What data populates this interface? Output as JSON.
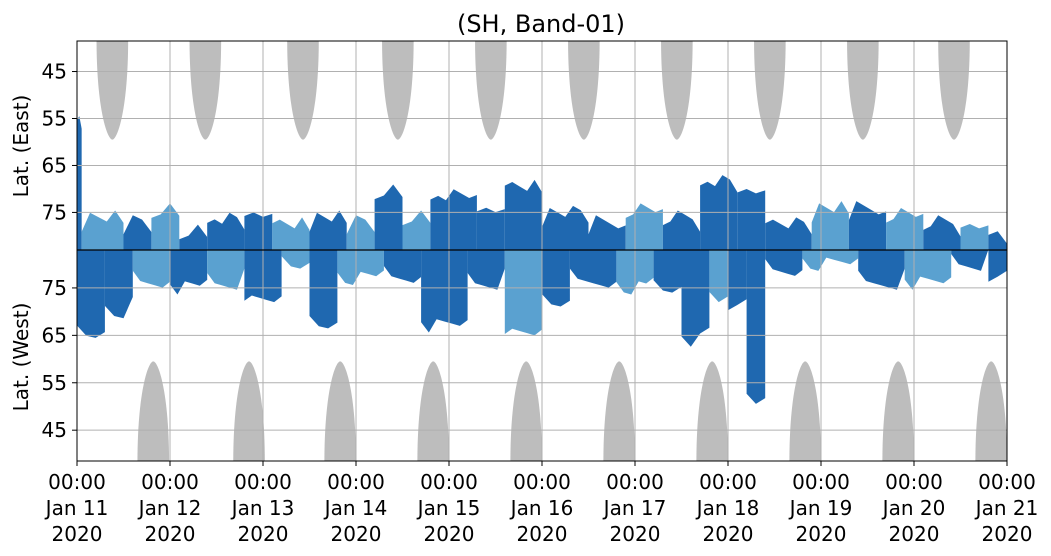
{
  "chart_data": {
    "type": "heatmap",
    "title": "(SH, Band-01)",
    "ylabel_east": "Lat. (East)",
    "ylabel_west": "Lat. (West)",
    "y_ticks_east": [
      "45",
      "55",
      "65",
      "75"
    ],
    "y_ticks_west": [
      "75",
      "65",
      "55",
      "45"
    ],
    "y_tick_values_east": [
      45,
      55,
      65,
      75
    ],
    "y_tick_values_west": [
      75,
      65,
      55,
      45
    ],
    "y_range_east": [
      38.5,
      83
    ],
    "y_range_west": [
      83,
      38.5
    ],
    "x_ticks": [
      {
        "time": "00:00",
        "date": "Jan 11",
        "year": "2020"
      },
      {
        "time": "00:00",
        "date": "Jan 12",
        "year": "2020"
      },
      {
        "time": "00:00",
        "date": "Jan 13",
        "year": "2020"
      },
      {
        "time": "00:00",
        "date": "Jan 14",
        "year": "2020"
      },
      {
        "time": "00:00",
        "date": "Jan 15",
        "year": "2020"
      },
      {
        "time": "00:00",
        "date": "Jan 16",
        "year": "2020"
      },
      {
        "time": "00:00",
        "date": "Jan 17",
        "year": "2020"
      },
      {
        "time": "00:00",
        "date": "Jan 18",
        "year": "2020"
      },
      {
        "time": "00:00",
        "date": "Jan 19",
        "year": "2020"
      },
      {
        "time": "00:00",
        "date": "Jan 20",
        "year": "2020"
      },
      {
        "time": "00:00",
        "date": "Jan 21",
        "year": "2020"
      }
    ],
    "x_range_days": [
      0,
      10
    ],
    "grid": true,
    "colors": {
      "strong": "#1f68b0",
      "weak": "#5aa1d0",
      "shade": "#bdbdbd",
      "grid": "#b0b0b0",
      "divider": "#000000"
    },
    "east_shade_centers": [
      0.38,
      1.38,
      2.43,
      3.45,
      4.45,
      5.45,
      6.45,
      7.45,
      8.45,
      9.43
    ],
    "west_shade_centers": [
      0.82,
      1.85,
      2.83,
      3.83,
      4.83,
      5.83,
      6.83,
      7.83,
      8.83,
      9.83
    ],
    "east_activity": [
      {
        "start": 0.0,
        "end": 0.05,
        "top": 55,
        "level": "strong"
      },
      {
        "start": 0.05,
        "end": 0.5,
        "top": 76,
        "level": "weak"
      },
      {
        "start": 0.5,
        "end": 0.8,
        "top": 77,
        "level": "strong"
      },
      {
        "start": 0.8,
        "end": 1.1,
        "top": 74,
        "level": "weak"
      },
      {
        "start": 1.1,
        "end": 1.4,
        "top": 79,
        "level": "strong"
      },
      {
        "start": 1.4,
        "end": 1.8,
        "top": 76,
        "level": "strong"
      },
      {
        "start": 1.8,
        "end": 2.1,
        "top": 75,
        "level": "strong"
      },
      {
        "start": 2.1,
        "end": 2.5,
        "top": 77,
        "level": "weak"
      },
      {
        "start": 2.5,
        "end": 2.9,
        "top": 76,
        "level": "strong"
      },
      {
        "start": 2.9,
        "end": 3.2,
        "top": 77,
        "level": "weak"
      },
      {
        "start": 3.2,
        "end": 3.5,
        "top": 70,
        "level": "strong"
      },
      {
        "start": 3.5,
        "end": 3.8,
        "top": 76,
        "level": "weak"
      },
      {
        "start": 3.8,
        "end": 4.3,
        "top": 71,
        "level": "strong"
      },
      {
        "start": 4.3,
        "end": 4.6,
        "top": 74,
        "level": "strong"
      },
      {
        "start": 4.6,
        "end": 5.0,
        "top": 69,
        "level": "strong"
      },
      {
        "start": 5.0,
        "end": 5.5,
        "top": 75,
        "level": "strong"
      },
      {
        "start": 5.5,
        "end": 5.9,
        "top": 77,
        "level": "strong"
      },
      {
        "start": 5.9,
        "end": 6.3,
        "top": 74,
        "level": "weak"
      },
      {
        "start": 6.3,
        "end": 6.7,
        "top": 76,
        "level": "strong"
      },
      {
        "start": 6.7,
        "end": 7.1,
        "top": 68,
        "level": "strong"
      },
      {
        "start": 7.1,
        "end": 7.4,
        "top": 70,
        "level": "strong"
      },
      {
        "start": 7.4,
        "end": 7.9,
        "top": 77,
        "level": "strong"
      },
      {
        "start": 7.9,
        "end": 8.3,
        "top": 74,
        "level": "weak"
      },
      {
        "start": 8.3,
        "end": 8.7,
        "top": 74,
        "level": "strong"
      },
      {
        "start": 8.7,
        "end": 9.1,
        "top": 75,
        "level": "weak"
      },
      {
        "start": 9.1,
        "end": 9.5,
        "top": 77,
        "level": "strong"
      },
      {
        "start": 9.5,
        "end": 9.8,
        "top": 77,
        "level": "weak"
      },
      {
        "start": 9.8,
        "end": 10.0,
        "top": 79,
        "level": "strong"
      }
    ],
    "west_activity": [
      {
        "start": 0.0,
        "end": 0.3,
        "bottom": 64,
        "level": "strong"
      },
      {
        "start": 0.3,
        "end": 0.6,
        "bottom": 70,
        "level": "strong"
      },
      {
        "start": 0.6,
        "end": 1.0,
        "bottom": 76,
        "level": "weak"
      },
      {
        "start": 1.0,
        "end": 1.4,
        "bottom": 75,
        "level": "strong"
      },
      {
        "start": 1.4,
        "end": 1.8,
        "bottom": 76,
        "level": "weak"
      },
      {
        "start": 1.8,
        "end": 2.2,
        "bottom": 72,
        "level": "strong"
      },
      {
        "start": 2.2,
        "end": 2.5,
        "bottom": 80,
        "level": "weak"
      },
      {
        "start": 2.5,
        "end": 2.8,
        "bottom": 66,
        "level": "strong"
      },
      {
        "start": 2.8,
        "end": 3.3,
        "bottom": 77,
        "level": "weak"
      },
      {
        "start": 3.3,
        "end": 3.7,
        "bottom": 77,
        "level": "strong"
      },
      {
        "start": 3.7,
        "end": 4.2,
        "bottom": 67,
        "level": "strong"
      },
      {
        "start": 4.2,
        "end": 4.6,
        "bottom": 76,
        "level": "strong"
      },
      {
        "start": 4.6,
        "end": 5.0,
        "bottom": 65,
        "level": "weak"
      },
      {
        "start": 5.0,
        "end": 5.3,
        "bottom": 72,
        "level": "strong"
      },
      {
        "start": 5.3,
        "end": 5.8,
        "bottom": 76,
        "level": "strong"
      },
      {
        "start": 5.8,
        "end": 6.2,
        "bottom": 75,
        "level": "weak"
      },
      {
        "start": 6.2,
        "end": 6.5,
        "bottom": 74,
        "level": "strong"
      },
      {
        "start": 6.5,
        "end": 6.8,
        "bottom": 64,
        "level": "strong"
      },
      {
        "start": 6.8,
        "end": 7.0,
        "bottom": 72,
        "level": "weak"
      },
      {
        "start": 7.0,
        "end": 7.2,
        "bottom": 70,
        "level": "strong"
      },
      {
        "start": 7.2,
        "end": 7.4,
        "bottom": 51,
        "level": "strong"
      },
      {
        "start": 7.4,
        "end": 7.8,
        "bottom": 78,
        "level": "strong"
      },
      {
        "start": 7.8,
        "end": 8.4,
        "bottom": 80,
        "level": "weak"
      },
      {
        "start": 8.4,
        "end": 8.9,
        "bottom": 76,
        "level": "strong"
      },
      {
        "start": 8.9,
        "end": 9.4,
        "bottom": 76,
        "level": "weak"
      },
      {
        "start": 9.4,
        "end": 9.8,
        "bottom": 80,
        "level": "strong"
      },
      {
        "start": 9.8,
        "end": 10.0,
        "bottom": 76,
        "level": "strong"
      }
    ]
  }
}
